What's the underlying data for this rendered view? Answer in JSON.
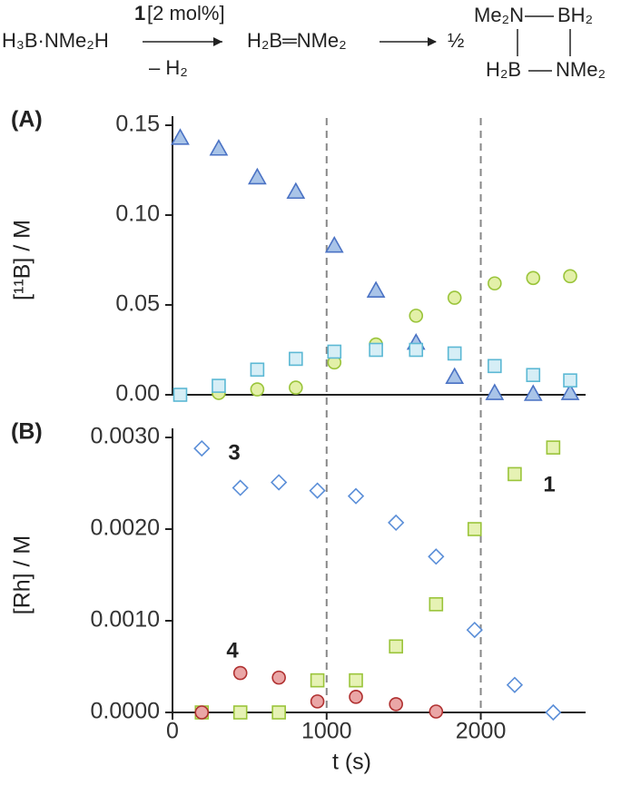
{
  "scheme": {
    "reactant": "H₃B·NMe₂H",
    "catalyst": "1",
    "loading": "[2 mol%]",
    "byproduct": "– H₂",
    "intermediate": "H₂B═NMe₂",
    "fraction": "½",
    "ring": [
      "Me₂N",
      "BH₂",
      "H₂B",
      "NMe₂"
    ]
  },
  "chart_data": [
    {
      "type": "scatter",
      "panel": "(A)",
      "ylabel": "[¹¹B] / M",
      "xlim": [
        0,
        2680
      ],
      "ylim": [
        0,
        0.15
      ],
      "yticks": [
        {
          "value": 0,
          "label": "0.00"
        },
        {
          "value": 0.05,
          "label": "0.05"
        },
        {
          "value": 0.1,
          "label": "0.10"
        },
        {
          "value": 0.15,
          "label": "0.15"
        }
      ],
      "vlines": [
        1000,
        2000
      ],
      "series": [
        {
          "marker": "triangle",
          "color": "#4a72c4",
          "fill": "#a9c4e8",
          "x": [
            50,
            300,
            550,
            800,
            1050,
            1320,
            1580,
            1830,
            2090,
            2340,
            2580
          ],
          "values": [
            0.143,
            0.137,
            0.121,
            0.113,
            0.083,
            0.058,
            0.029,
            0.01,
            0.001,
            0.0005,
            0.001
          ]
        },
        {
          "marker": "circle",
          "color": "#9ac43a",
          "fill": "#e3f0a8",
          "x": [
            300,
            550,
            800,
            1050,
            1320,
            1580,
            1830,
            2090,
            2340,
            2580
          ],
          "values": [
            0.001,
            0.003,
            0.004,
            0.018,
            0.028,
            0.044,
            0.054,
            0.062,
            0.065,
            0.066
          ]
        },
        {
          "marker": "square",
          "color": "#5bb8d4",
          "fill": "#d6eef6",
          "x": [
            50,
            300,
            550,
            800,
            1050,
            1320,
            1580,
            1830,
            2090,
            2340,
            2580
          ],
          "values": [
            0,
            0.005,
            0.014,
            0.02,
            0.024,
            0.025,
            0.025,
            0.023,
            0.016,
            0.011,
            0.008
          ]
        }
      ]
    },
    {
      "type": "scatter",
      "panel": "(B)",
      "ylabel": "[Rh] / M",
      "xlabel": "t (s)",
      "xlim": [
        0,
        2680
      ],
      "xticks": [
        0,
        1000,
        2000
      ],
      "ylim": [
        0,
        0.003
      ],
      "yticks": [
        {
          "value": 0,
          "label": "0.0000"
        },
        {
          "value": 0.001,
          "label": "0.0010"
        },
        {
          "value": 0.002,
          "label": "0.0020"
        },
        {
          "value": 0.003,
          "label": "0.0030"
        }
      ],
      "vlines": [
        1000,
        2000
      ],
      "annotations": [
        "3",
        "4",
        "1"
      ],
      "series": [
        {
          "marker": "diamond",
          "color": "#5a8ed8",
          "fill": "#ffffff",
          "x": [
            190,
            440,
            690,
            940,
            1190,
            1450,
            1710,
            1960,
            2220,
            2470
          ],
          "values": [
            0.00288,
            0.00245,
            0.00251,
            0.00242,
            0.00236,
            0.00207,
            0.0017,
            0.0009,
            0.0003,
            0
          ]
        },
        {
          "marker": "square",
          "color": "#9ac43a",
          "fill": "#e6f2b4",
          "x": [
            190,
            440,
            690,
            940,
            1190,
            1450,
            1710,
            1960,
            2220,
            2470
          ],
          "values": [
            0,
            0,
            0,
            0.00035,
            0.00035,
            0.00072,
            0.00118,
            0.002,
            0.0026,
            0.00289
          ]
        },
        {
          "marker": "circle",
          "color": "#b03030",
          "fill": "#eaa6a6",
          "x": [
            190,
            440,
            690,
            940,
            1190,
            1450,
            1710
          ],
          "values": [
            0,
            0.00043,
            0.00038,
            0.00012,
            0.00017,
            9e-05,
            1e-05
          ]
        }
      ]
    }
  ]
}
